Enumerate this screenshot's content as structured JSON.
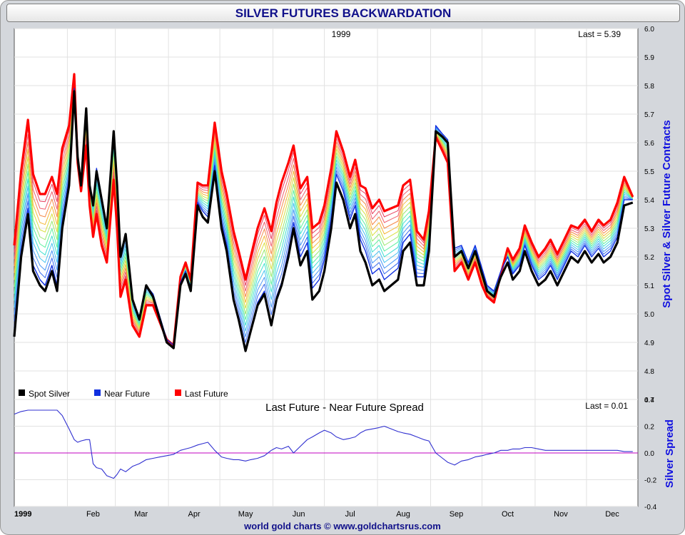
{
  "title": "SILVER FUTURES BACKWARDATION",
  "footer": "world gold charts © www.goldchartsrus.com",
  "colors": {
    "spot": "#000000",
    "near": "#1030e0",
    "last": "#ff0000",
    "spread_line": "#3030d0",
    "zero_line": "#c000c0",
    "axis_title": "#1010e0"
  },
  "chart_data": [
    {
      "type": "line",
      "year_label": "1999",
      "last_label": "Last = 5.39",
      "ylabel": "Spot Silver & Silver Future Contracts",
      "ylim": [
        4.7,
        6.0
      ],
      "yticks": [
        "4.7",
        "4.8",
        "4.9",
        "5.0",
        "5.1",
        "5.2",
        "5.3",
        "5.4",
        "5.5",
        "5.6",
        "5.7",
        "5.8",
        "5.9",
        "6.0"
      ],
      "legend": [
        "Spot Silver",
        "Near Future",
        "Last Future"
      ],
      "x_months": [
        "1999",
        "Feb",
        "Mar",
        "Apr",
        "May",
        "Jun",
        "Jul",
        "Aug",
        "Sep",
        "Oct",
        "Nov",
        "Dec"
      ],
      "x": [
        1,
        5,
        9,
        12,
        16,
        19,
        23,
        26,
        29,
        33,
        36,
        38,
        40,
        43,
        45,
        47,
        49,
        52,
        55,
        59,
        61,
        63,
        66,
        70,
        74,
        78,
        82,
        86,
        90,
        94,
        98,
        101,
        104,
        108,
        111,
        114,
        118,
        122,
        125,
        129,
        132,
        136,
        139,
        143,
        147,
        151,
        154,
        157,
        161,
        164,
        168,
        172,
        175,
        179,
        182,
        186,
        189,
        193,
        197,
        200,
        203,
        206,
        210,
        214,
        217,
        221,
        225,
        228,
        232,
        236,
        240,
        243,
        247,
        251,
        254,
        258,
        262,
        266,
        270,
        274,
        277,
        281,
        285,
        289,
        292,
        296,
        299,
        303,
        307,
        311,
        314,
        318,
        322,
        326,
        330,
        334,
        338,
        342,
        345,
        349,
        353,
        357,
        362
      ],
      "series": [
        {
          "name": "Spot Silver",
          "values": [
            4.92,
            5.2,
            5.35,
            5.15,
            5.1,
            5.08,
            5.15,
            5.08,
            5.3,
            5.45,
            5.78,
            5.55,
            5.45,
            5.72,
            5.45,
            5.38,
            5.5,
            5.4,
            5.3,
            5.64,
            5.45,
            5.2,
            5.28,
            5.05,
            4.98,
            5.1,
            5.06,
            4.98,
            4.9,
            4.88,
            5.1,
            5.14,
            5.08,
            5.38,
            5.34,
            5.32,
            5.5,
            5.3,
            5.22,
            5.05,
            4.98,
            4.87,
            4.94,
            5.03,
            5.07,
            4.96,
            5.05,
            5.1,
            5.2,
            5.3,
            5.17,
            5.22,
            5.05,
            5.08,
            5.15,
            5.3,
            5.46,
            5.4,
            5.3,
            5.35,
            5.22,
            5.18,
            5.1,
            5.12,
            5.08,
            5.1,
            5.12,
            5.22,
            5.25,
            5.1,
            5.1,
            5.22,
            5.64,
            5.62,
            5.6,
            5.2,
            5.22,
            5.16,
            5.22,
            5.14,
            5.08,
            5.06,
            5.13,
            5.18,
            5.12,
            5.15,
            5.22,
            5.15,
            5.1,
            5.12,
            5.15,
            5.1,
            5.15,
            5.2,
            5.18,
            5.22,
            5.18,
            5.21,
            5.18,
            5.2,
            5.25,
            5.38,
            5.39
          ]
        },
        {
          "name": "Near Future",
          "values": [
            4.95,
            5.22,
            5.37,
            5.17,
            5.12,
            5.1,
            5.17,
            5.1,
            5.32,
            5.47,
            5.79,
            5.56,
            5.46,
            5.71,
            5.46,
            5.39,
            5.51,
            5.41,
            5.31,
            5.63,
            5.44,
            5.21,
            5.28,
            5.05,
            4.99,
            5.1,
            5.07,
            4.99,
            4.91,
            4.89,
            5.11,
            5.15,
            5.09,
            5.39,
            5.36,
            5.34,
            5.52,
            5.32,
            5.24,
            5.06,
            4.99,
            4.88,
            4.95,
            5.04,
            5.08,
            4.97,
            5.06,
            5.11,
            5.22,
            5.32,
            5.2,
            5.25,
            5.09,
            5.12,
            5.19,
            5.33,
            5.49,
            5.43,
            5.33,
            5.38,
            5.26,
            5.22,
            5.14,
            5.16,
            5.12,
            5.14,
            5.16,
            5.25,
            5.28,
            5.13,
            5.13,
            5.24,
            5.66,
            5.63,
            5.61,
            5.23,
            5.24,
            5.18,
            5.24,
            5.16,
            5.1,
            5.08,
            5.15,
            5.2,
            5.14,
            5.17,
            5.24,
            5.17,
            5.12,
            5.14,
            5.17,
            5.12,
            5.17,
            5.22,
            5.2,
            5.24,
            5.2,
            5.23,
            5.2,
            5.22,
            5.27,
            5.4,
            5.4
          ]
        },
        {
          "name": "Last Future",
          "values": [
            5.24,
            5.5,
            5.68,
            5.49,
            5.42,
            5.42,
            5.48,
            5.42,
            5.58,
            5.66,
            5.84,
            5.53,
            5.43,
            5.59,
            5.38,
            5.27,
            5.35,
            5.24,
            5.18,
            5.47,
            5.3,
            5.06,
            5.12,
            4.96,
            4.92,
            5.03,
            5.03,
            4.97,
            4.91,
            4.89,
            5.13,
            5.18,
            5.12,
            5.46,
            5.45,
            5.45,
            5.67,
            5.5,
            5.42,
            5.29,
            5.22,
            5.12,
            5.2,
            5.3,
            5.37,
            5.29,
            5.39,
            5.46,
            5.53,
            5.59,
            5.44,
            5.48,
            5.3,
            5.32,
            5.38,
            5.51,
            5.64,
            5.57,
            5.48,
            5.54,
            5.45,
            5.44,
            5.37,
            5.4,
            5.36,
            5.37,
            5.38,
            5.45,
            5.47,
            5.29,
            5.26,
            5.36,
            5.62,
            5.57,
            5.53,
            5.15,
            5.18,
            5.12,
            5.18,
            5.1,
            5.06,
            5.04,
            5.14,
            5.23,
            5.19,
            5.23,
            5.31,
            5.25,
            5.2,
            5.23,
            5.26,
            5.21,
            5.26,
            5.31,
            5.3,
            5.33,
            5.29,
            5.33,
            5.31,
            5.33,
            5.39,
            5.48,
            5.41
          ]
        }
      ]
    },
    {
      "type": "line",
      "title": "Last Future - Near Future Spread",
      "last_label": "Last = 0.01",
      "ylabel": "Silver Spread",
      "ylim": [
        -0.4,
        0.4
      ],
      "yticks": [
        "-0.4",
        "-0.2",
        "0.0",
        "0.2",
        "0.4"
      ],
      "reference_line": 0.0,
      "x": [
        1,
        5,
        9,
        12,
        16,
        19,
        23,
        26,
        29,
        33,
        36,
        38,
        40,
        43,
        45,
        47,
        49,
        52,
        55,
        59,
        61,
        63,
        66,
        70,
        74,
        78,
        82,
        86,
        90,
        94,
        98,
        101,
        104,
        108,
        111,
        114,
        118,
        122,
        125,
        129,
        132,
        136,
        139,
        143,
        147,
        151,
        154,
        157,
        161,
        164,
        168,
        172,
        175,
        179,
        182,
        186,
        189,
        193,
        197,
        200,
        203,
        206,
        210,
        214,
        217,
        221,
        225,
        228,
        232,
        236,
        240,
        243,
        247,
        251,
        254,
        258,
        262,
        266,
        270,
        274,
        277,
        281,
        285,
        289,
        292,
        296,
        299,
        303,
        307,
        311,
        314,
        318,
        322,
        326,
        330,
        334,
        338,
        342,
        345,
        349,
        353,
        357,
        362
      ],
      "values": [
        0.29,
        0.31,
        0.32,
        0.32,
        0.32,
        0.32,
        0.32,
        0.32,
        0.28,
        0.18,
        0.1,
        0.08,
        0.09,
        0.1,
        0.1,
        -0.08,
        -0.11,
        -0.12,
        -0.17,
        -0.19,
        -0.16,
        -0.12,
        -0.14,
        -0.1,
        -0.08,
        -0.05,
        -0.04,
        -0.03,
        -0.02,
        -0.01,
        0.02,
        0.03,
        0.04,
        0.06,
        0.07,
        0.08,
        0.02,
        -0.03,
        -0.04,
        -0.05,
        -0.05,
        -0.06,
        -0.05,
        -0.04,
        -0.02,
        0.02,
        0.04,
        0.03,
        0.05,
        0.0,
        0.05,
        0.1,
        0.12,
        0.15,
        0.17,
        0.15,
        0.12,
        0.1,
        0.11,
        0.12,
        0.15,
        0.17,
        0.18,
        0.19,
        0.2,
        0.18,
        0.16,
        0.15,
        0.14,
        0.12,
        0.1,
        0.09,
        0.0,
        -0.04,
        -0.07,
        -0.09,
        -0.06,
        -0.05,
        -0.03,
        -0.02,
        -0.01,
        0.0,
        0.02,
        0.02,
        0.03,
        0.03,
        0.04,
        0.04,
        0.03,
        0.02,
        0.02,
        0.02,
        0.02,
        0.02,
        0.02,
        0.02,
        0.02,
        0.02,
        0.02,
        0.02,
        0.02,
        0.01,
        0.01
      ]
    }
  ]
}
